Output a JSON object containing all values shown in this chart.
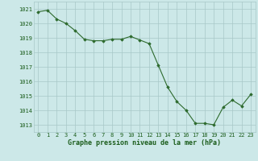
{
  "x": [
    0,
    1,
    2,
    3,
    4,
    5,
    6,
    7,
    8,
    9,
    10,
    11,
    12,
    13,
    14,
    15,
    16,
    17,
    18,
    19,
    20,
    21,
    22,
    23
  ],
  "y": [
    1020.8,
    1020.9,
    1020.3,
    1020.0,
    1019.5,
    1018.9,
    1018.8,
    1018.8,
    1018.9,
    1018.9,
    1019.1,
    1018.85,
    1018.6,
    1017.1,
    1015.6,
    1014.6,
    1014.0,
    1013.1,
    1013.1,
    1013.0,
    1014.2,
    1014.7,
    1014.3,
    1015.1
  ],
  "line_color": "#2d6a2d",
  "marker": "D",
  "marker_size": 1.8,
  "line_width": 0.8,
  "bg_color": "#cce8e8",
  "grid_color": "#a8c8c8",
  "xlabel": "Graphe pression niveau de la mer (hPa)",
  "xlabel_fontsize": 6.0,
  "xlabel_color": "#1a5c1a",
  "xlabel_bold": true,
  "ylim": [
    1012.5,
    1021.5
  ],
  "xlim": [
    -0.5,
    23.5
  ],
  "yticks": [
    1013,
    1014,
    1015,
    1016,
    1017,
    1018,
    1019,
    1020,
    1021
  ],
  "xticks": [
    0,
    1,
    2,
    3,
    4,
    5,
    6,
    7,
    8,
    9,
    10,
    11,
    12,
    13,
    14,
    15,
    16,
    17,
    18,
    19,
    20,
    21,
    22,
    23
  ],
  "tick_fontsize": 5.0,
  "tick_color": "#1a5c1a"
}
